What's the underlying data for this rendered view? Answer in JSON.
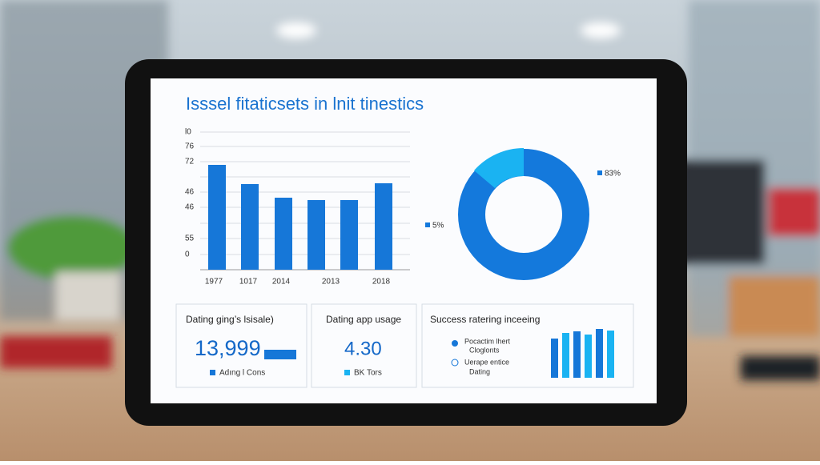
{
  "header": {
    "title": "Isssel fitaticsets in lnit tinestics"
  },
  "bar_panel": {
    "y_axis_labels": [
      "l0",
      "76",
      "72",
      "46",
      "46",
      "55",
      "0"
    ],
    "x_axis_labels": [
      "1977",
      "1017",
      "2014",
      "2013",
      "2018"
    ]
  },
  "donut_panel": {
    "labels": [
      "83%",
      "5%"
    ]
  },
  "cards": [
    {
      "title": "Dating ging’s lsisale)",
      "value": "13,999",
      "legend": "Adıng l Cons"
    },
    {
      "title": "Dating app usage",
      "value": "4.30",
      "legend": "BK Tors"
    },
    {
      "title": "Success ratering inceeing",
      "items": [
        [
          "Pocactim lhert",
          "Cloglonts"
        ],
        [
          "Uerape entice",
          "Dating"
        ]
      ]
    }
  ]
}
